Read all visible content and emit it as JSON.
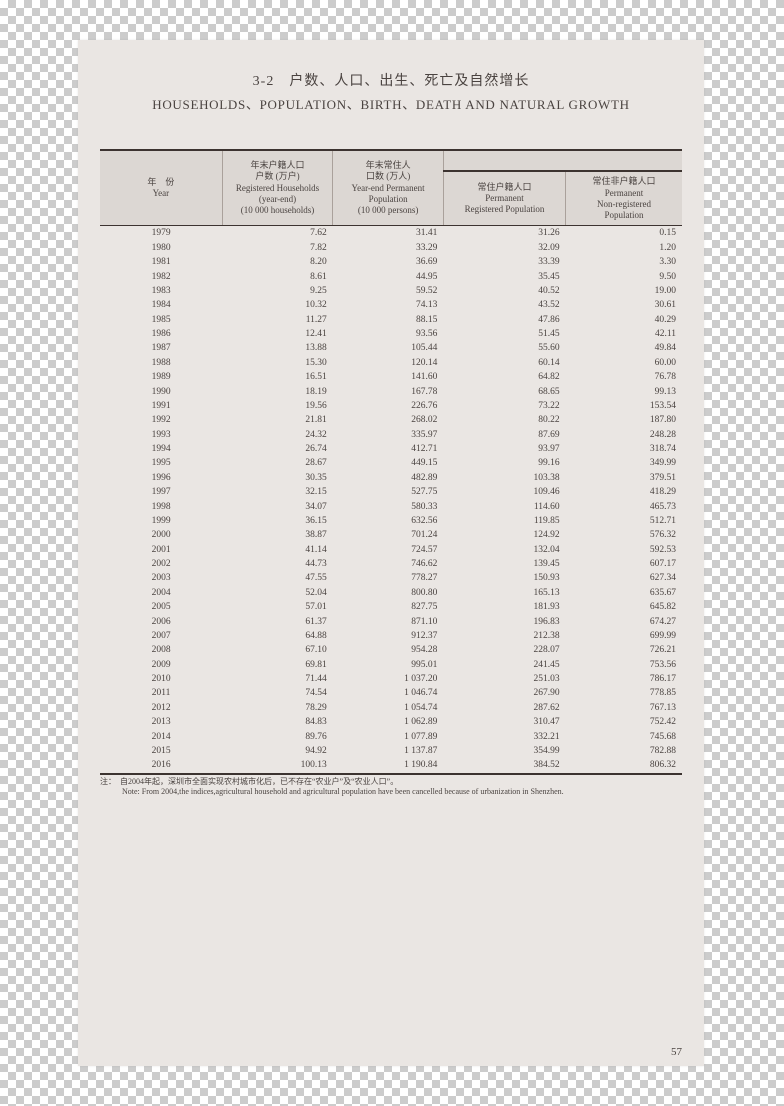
{
  "title_cn": "3-2　户数、人口、出生、死亡及自然增长",
  "title_en": "HOUSEHOLDS、POPULATION、BIRTH、DEATH AND NATURAL GROWTH",
  "header": {
    "year": {
      "cn": "年　份",
      "en": "Year"
    },
    "col1": {
      "cn1": "年末户籍人口",
      "cn2": "户数 (万户)",
      "en1": "Registered Households",
      "en2": "(year-end)",
      "en3": "(10 000 households)"
    },
    "col2": {
      "cn1": "年末常住人",
      "cn2": "口数 (万人)",
      "en1": "Year-end Permanent",
      "en2": "Population",
      "en3": "(10 000 persons)"
    },
    "col3": {
      "cn": "常住户籍人口",
      "en1": "Permanent",
      "en2": "Registered Population"
    },
    "col4": {
      "cn": "常住非户籍人口",
      "en1": "Permanent",
      "en2": "Non-registered",
      "en3": "Population"
    }
  },
  "rows": [
    [
      "1979",
      "7.62",
      "31.41",
      "31.26",
      "0.15"
    ],
    [
      "1980",
      "7.82",
      "33.29",
      "32.09",
      "1.20"
    ],
    [
      "1981",
      "8.20",
      "36.69",
      "33.39",
      "3.30"
    ],
    [
      "1982",
      "8.61",
      "44.95",
      "35.45",
      "9.50"
    ],
    [
      "1983",
      "9.25",
      "59.52",
      "40.52",
      "19.00"
    ],
    [
      "1984",
      "10.32",
      "74.13",
      "43.52",
      "30.61"
    ],
    [
      "1985",
      "11.27",
      "88.15",
      "47.86",
      "40.29"
    ],
    [
      "1986",
      "12.41",
      "93.56",
      "51.45",
      "42.11"
    ],
    [
      "1987",
      "13.88",
      "105.44",
      "55.60",
      "49.84"
    ],
    [
      "1988",
      "15.30",
      "120.14",
      "60.14",
      "60.00"
    ],
    [
      "1989",
      "16.51",
      "141.60",
      "64.82",
      "76.78"
    ],
    [
      "1990",
      "18.19",
      "167.78",
      "68.65",
      "99.13"
    ],
    [
      "1991",
      "19.56",
      "226.76",
      "73.22",
      "153.54"
    ],
    [
      "1992",
      "21.81",
      "268.02",
      "80.22",
      "187.80"
    ],
    [
      "1993",
      "24.32",
      "335.97",
      "87.69",
      "248.28"
    ],
    [
      "1994",
      "26.74",
      "412.71",
      "93.97",
      "318.74"
    ],
    [
      "1995",
      "28.67",
      "449.15",
      "99.16",
      "349.99"
    ],
    [
      "1996",
      "30.35",
      "482.89",
      "103.38",
      "379.51"
    ],
    [
      "1997",
      "32.15",
      "527.75",
      "109.46",
      "418.29"
    ],
    [
      "1998",
      "34.07",
      "580.33",
      "114.60",
      "465.73"
    ],
    [
      "1999",
      "36.15",
      "632.56",
      "119.85",
      "512.71"
    ],
    [
      "2000",
      "38.87",
      "701.24",
      "124.92",
      "576.32"
    ],
    [
      "2001",
      "41.14",
      "724.57",
      "132.04",
      "592.53"
    ],
    [
      "2002",
      "44.73",
      "746.62",
      "139.45",
      "607.17"
    ],
    [
      "2003",
      "47.55",
      "778.27",
      "150.93",
      "627.34"
    ],
    [
      "2004",
      "52.04",
      "800.80",
      "165.13",
      "635.67"
    ],
    [
      "2005",
      "57.01",
      "827.75",
      "181.93",
      "645.82"
    ],
    [
      "2006",
      "61.37",
      "871.10",
      "196.83",
      "674.27"
    ],
    [
      "2007",
      "64.88",
      "912.37",
      "212.38",
      "699.99"
    ],
    [
      "2008",
      "67.10",
      "954.28",
      "228.07",
      "726.21"
    ],
    [
      "2009",
      "69.81",
      "995.01",
      "241.45",
      "753.56"
    ],
    [
      "2010",
      "71.44",
      "1 037.20",
      "251.03",
      "786.17"
    ],
    [
      "2011",
      "74.54",
      "1 046.74",
      "267.90",
      "778.85"
    ],
    [
      "2012",
      "78.29",
      "1 054.74",
      "287.62",
      "767.13"
    ],
    [
      "2013",
      "84.83",
      "1 062.89",
      "310.47",
      "752.42"
    ],
    [
      "2014",
      "89.76",
      "1 077.89",
      "332.21",
      "745.68"
    ],
    [
      "2015",
      "94.92",
      "1 137.87",
      "354.99",
      "782.88"
    ],
    [
      "2016",
      "100.13",
      "1 190.84",
      "384.52",
      "806.32"
    ]
  ],
  "note_cn": "注：　自2004年起，深圳市全面实现农村城市化后，已不存在“农业户”及“农业人口”。",
  "note_en": "Note: From 2004,the indices,agricultural household and agricultural population have been cancelled because of urbanization in Shenzhen.",
  "page_number": "57",
  "style": {
    "page_bg": "#eae6e3",
    "header_bg": "#dcd7d3",
    "rule_color": "#3c3330",
    "text_color": "#4a4340",
    "col_widths_pct": [
      21,
      19,
      19,
      21,
      20
    ]
  }
}
